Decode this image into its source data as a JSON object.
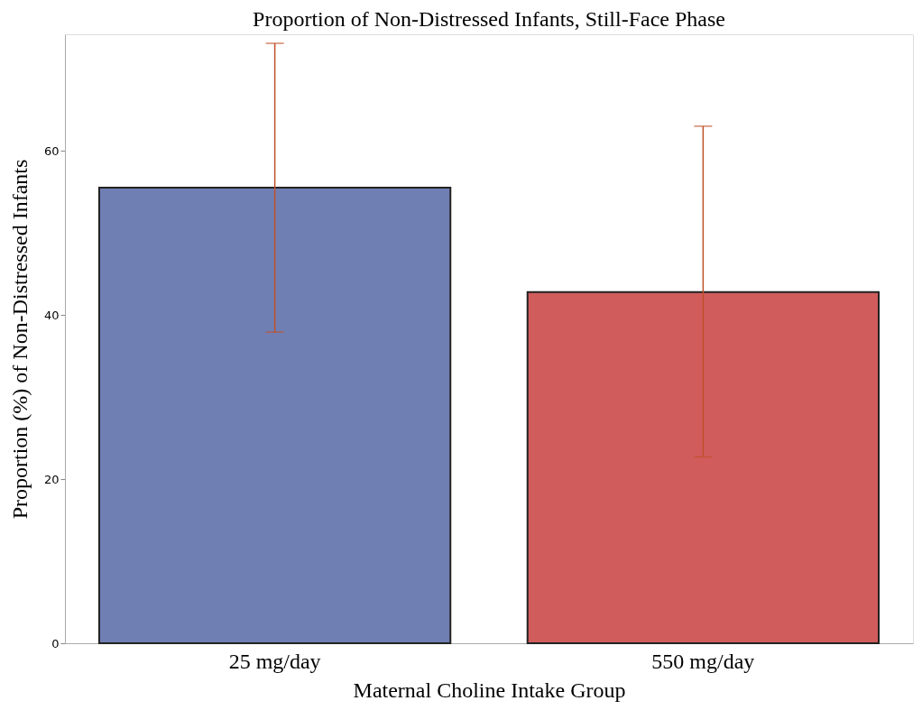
{
  "chart_data": {
    "type": "bar",
    "title": "Proportion of Non-Distressed Infants, Still-Face Phase",
    "xlabel": "Maternal Choline Intake Group",
    "ylabel": "Proportion (%) of Non-Distressed Infants",
    "categories": [
      "25 mg/day",
      "550 mg/day"
    ],
    "values": [
      55.5,
      42.8
    ],
    "colors": [
      "#6f7fb3",
      "#d05c5c"
    ],
    "errors": [
      [
        37.9,
        73.1
      ],
      [
        22.7,
        63.0
      ]
    ],
    "ylim": [
      0,
      74.2
    ],
    "yticks": [
      0,
      20,
      40,
      60
    ],
    "grid": false,
    "legend": false
  }
}
